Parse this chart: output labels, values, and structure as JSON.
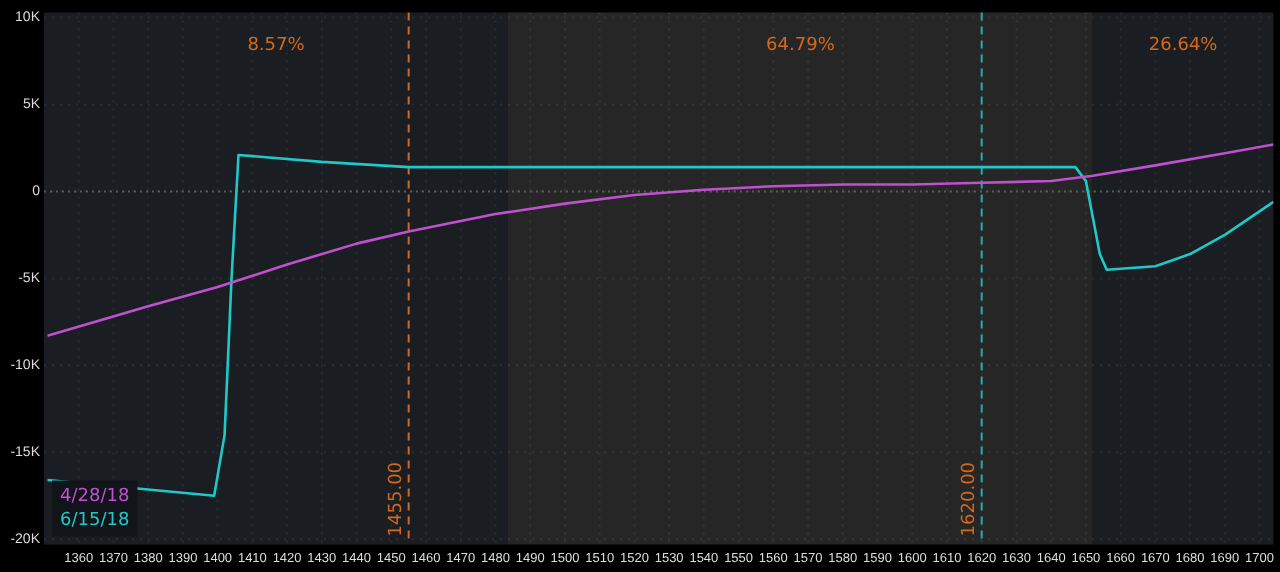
{
  "chart_data": {
    "type": "line",
    "x": [
      1351,
      1380,
      1400,
      1420,
      1440,
      1455,
      1480,
      1500,
      1520,
      1540,
      1560,
      1580,
      1600,
      1620,
      1640,
      1652,
      1670,
      1690,
      1704
    ],
    "series": [
      {
        "name": "4/28/18",
        "color": "#c050d0",
        "values": [
          -8300,
          -6600,
          -5500,
          -4200,
          -3000,
          -2300,
          -1300,
          -700,
          -200,
          100,
          300,
          400,
          400,
          500,
          600,
          900,
          1500,
          2200,
          2700
        ]
      },
      {
        "name": "6/15/18",
        "color": "#20c8c8",
        "x": [
          1351,
          1399,
          1402,
          1404,
          1406,
          1430,
          1455,
          1480,
          1520,
          1600,
          1647,
          1650,
          1652,
          1654,
          1656,
          1670,
          1680,
          1690,
          1704
        ],
        "values": [
          -16600,
          -17500,
          -14000,
          -5000,
          2100,
          1700,
          1400,
          1400,
          1400,
          1400,
          1400,
          600,
          -1500,
          -3600,
          -4500,
          -4300,
          -3600,
          -2500,
          -600
        ]
      }
    ],
    "xlim": [
      1350,
      1704
    ],
    "xticks": [
      1360,
      1370,
      1380,
      1390,
      1400,
      1410,
      1420,
      1430,
      1440,
      1450,
      1460,
      1470,
      1480,
      1490,
      1500,
      1510,
      1520,
      1530,
      1540,
      1550,
      1560,
      1570,
      1580,
      1590,
      1600,
      1610,
      1620,
      1630,
      1640,
      1650,
      1660,
      1670,
      1680,
      1690,
      1700
    ],
    "ylim": [
      -20300,
      10300
    ],
    "yticks": [
      {
        "value": 10000,
        "label": "10K"
      },
      {
        "value": 5000,
        "label": "5K"
      },
      0,
      {
        "value": -5000,
        "label": "-5K"
      },
      {
        "value": -10000,
        "label": "-10K"
      },
      {
        "value": -15000,
        "label": "-15K"
      },
      {
        "value": -20000,
        "label": "-20K"
      }
    ],
    "bands": [
      {
        "axis": "x",
        "from": 1350,
        "to": 1483.6,
        "label": "8.57%",
        "color": "#1a1d21"
      },
      {
        "axis": "x",
        "from": 1483.6,
        "to": 1652,
        "label": "64.79%",
        "color": "#262626"
      },
      {
        "axis": "x",
        "from": 1652,
        "to": 1704,
        "label": "26.64%",
        "color": "#1a1d21"
      }
    ],
    "ref_lines": [
      {
        "axis": "x",
        "value": 1455,
        "label": "1455.00",
        "color": "#d2691e",
        "line_style": "dashed"
      },
      {
        "axis": "x",
        "value": 1620,
        "label": "1620.00",
        "color": "#2aa8b0",
        "line_style": "dashed"
      },
      {
        "axis": "y",
        "value": 0,
        "color": "#5a5a5a",
        "line_style": "dotted"
      }
    ],
    "grid": true,
    "legend": "bottom left",
    "marker": "none",
    "line_style": "solid"
  }
}
